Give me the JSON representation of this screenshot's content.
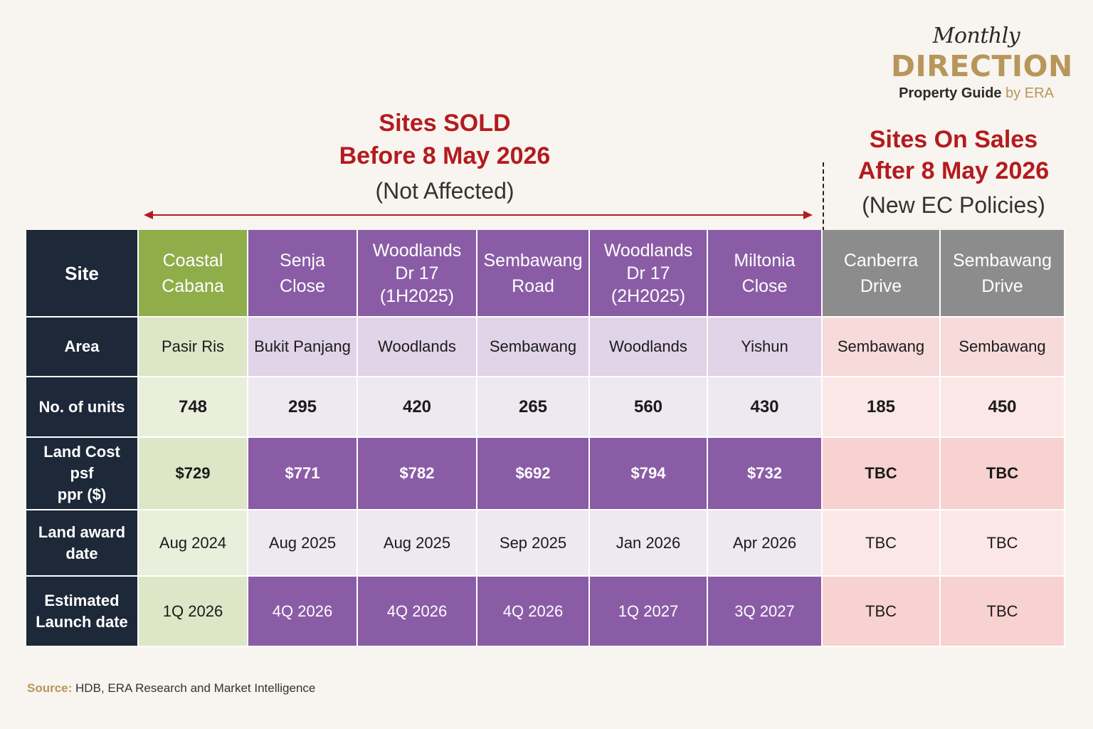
{
  "logo": {
    "script": "Monthly",
    "main": "DIRECTION",
    "sub_main": "Property Guide",
    "sub_by": "by ERA"
  },
  "sold_heading": {
    "line1": "Sites SOLD",
    "line2": "Before 8 May 2026",
    "line3": "(Not Affected)"
  },
  "sales_heading": {
    "line1": "Sites On Sales",
    "line2": "After 8 May 2026",
    "line3": "(New EC Policies)"
  },
  "table": {
    "row_labels": {
      "site": "Site",
      "area": "Area",
      "units": "No. of units",
      "land_cost_1": "Land Cost psf",
      "land_cost_2": "ppr ($)",
      "award_1": "Land award",
      "award_2": "date",
      "launch_1": "Estimated",
      "launch_2": "Launch date"
    },
    "columns": [
      {
        "site": [
          "Coastal",
          "Cabana"
        ],
        "area": "Pasir Ris",
        "units": "748",
        "land_cost": "$729",
        "award_date": "Aug 2024",
        "launch_date": "1Q 2026"
      },
      {
        "site": [
          "Senja",
          "Close"
        ],
        "area": "Bukit Panjang",
        "units": "295",
        "land_cost": "$771",
        "award_date": "Aug 2025",
        "launch_date": "4Q 2026"
      },
      {
        "site": [
          "Woodlands",
          "Dr 17",
          "(1H2025)"
        ],
        "area": "Woodlands",
        "units": "420",
        "land_cost": "$782",
        "award_date": "Aug 2025",
        "launch_date": "4Q 2026"
      },
      {
        "site": [
          "Sembawang",
          "Road"
        ],
        "area": "Sembawang",
        "units": "265",
        "land_cost": "$692",
        "award_date": "Sep 2025",
        "launch_date": "4Q 2026"
      },
      {
        "site": [
          "Woodlands",
          "Dr 17",
          "(2H2025)"
        ],
        "area": "Woodlands",
        "units": "560",
        "land_cost": "$794",
        "award_date": "Jan 2026",
        "launch_date": "1Q 2027"
      },
      {
        "site": [
          "Miltonia",
          "Close"
        ],
        "area": "Yishun",
        "units": "430",
        "land_cost": "$732",
        "award_date": "Apr 2026",
        "launch_date": "3Q 2027"
      },
      {
        "site": [
          "Canberra",
          "Drive"
        ],
        "area": "Sembawang",
        "units": "185",
        "land_cost": "TBC",
        "award_date": "TBC",
        "launch_date": "TBC"
      },
      {
        "site": [
          "Sembawang",
          "Drive"
        ],
        "area": "Sembawang",
        "units": "450",
        "land_cost": "TBC",
        "award_date": "TBC",
        "launch_date": "TBC"
      }
    ]
  },
  "source": {
    "label": "Source:",
    "text": "HDB, ERA Research and Market Intelligence"
  },
  "colors": {
    "heading_red": "#b31b1f",
    "gold": "#b8965a",
    "navy": "#1d2838",
    "green": "#8fae4a",
    "purple": "#8a5ca6",
    "grey": "#8c8c8c",
    "pink": "#f7d2d0"
  }
}
